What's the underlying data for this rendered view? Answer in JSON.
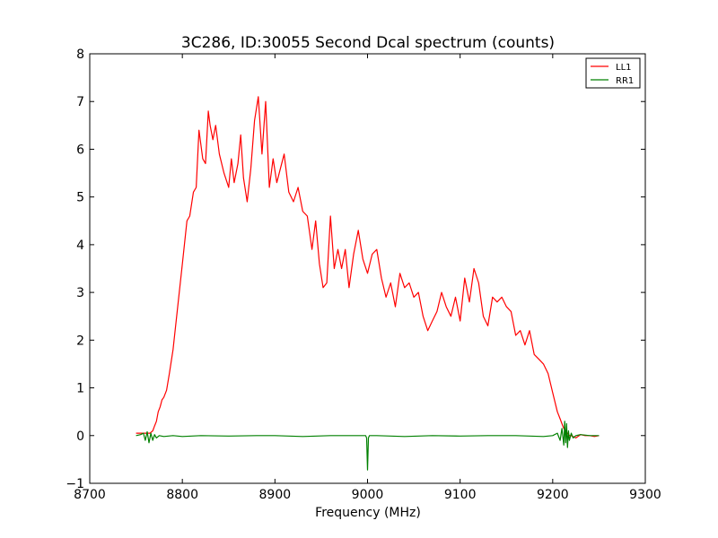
{
  "chart_data": {
    "type": "line",
    "title": "3C286, ID:30055 Second Dcal spectrum (counts)",
    "xlabel": "Frequency (MHz)",
    "ylabel": "",
    "xlim": [
      8700,
      9300
    ],
    "ylim": [
      -1,
      8
    ],
    "xticks": [
      8700,
      8800,
      8900,
      9000,
      9100,
      9200,
      9300
    ],
    "yticks": [
      -1,
      0,
      1,
      2,
      3,
      4,
      5,
      6,
      7,
      8
    ],
    "xtick_labels": [
      "8700",
      "8800",
      "8900",
      "9000",
      "9100",
      "9200",
      "9300"
    ],
    "ytick_labels": [
      "−1",
      "0",
      "1",
      "2",
      "3",
      "4",
      "5",
      "6",
      "7",
      "8"
    ],
    "grid": false,
    "legend_position": "top-right",
    "series": [
      {
        "name": "LL1",
        "color": "#ff0000",
        "x": [
          8750,
          8760,
          8765,
          8768,
          8770,
          8772,
          8774,
          8776,
          8778,
          8780,
          8783,
          8786,
          8790,
          8795,
          8800,
          8805,
          8808,
          8812,
          8815,
          8818,
          8822,
          8825,
          8828,
          8830,
          8833,
          8836,
          8840,
          8845,
          8850,
          8853,
          8856,
          8860,
          8863,
          8866,
          8870,
          8874,
          8878,
          8882,
          8886,
          8890,
          8894,
          8898,
          8902,
          8906,
          8910,
          8915,
          8920,
          8925,
          8930,
          8935,
          8940,
          8944,
          8948,
          8952,
          8956,
          8960,
          8964,
          8968,
          8972,
          8976,
          8980,
          8985,
          8990,
          8995,
          9000,
          9005,
          9010,
          9015,
          9020,
          9025,
          9030,
          9035,
          9040,
          9045,
          9050,
          9055,
          9060,
          9065,
          9070,
          9075,
          9080,
          9085,
          9090,
          9095,
          9100,
          9105,
          9110,
          9115,
          9120,
          9125,
          9130,
          9135,
          9140,
          9145,
          9150,
          9155,
          9160,
          9165,
          9170,
          9175,
          9180,
          9185,
          9190,
          9195,
          9200,
          9205,
          9208,
          9210,
          9212,
          9214,
          9216,
          9218,
          9220,
          9225,
          9230,
          9235,
          9240,
          9245,
          9250
        ],
        "y": [
          0.05,
          0.05,
          0.05,
          0.1,
          0.2,
          0.3,
          0.5,
          0.6,
          0.75,
          0.8,
          0.95,
          1.3,
          1.8,
          2.7,
          3.6,
          4.5,
          4.6,
          5.1,
          5.2,
          6.4,
          5.8,
          5.7,
          6.8,
          6.5,
          6.2,
          6.5,
          5.9,
          5.5,
          5.2,
          5.8,
          5.3,
          5.7,
          6.3,
          5.4,
          4.9,
          5.6,
          6.6,
          7.1,
          5.9,
          7.0,
          5.2,
          5.8,
          5.3,
          5.6,
          5.9,
          5.1,
          4.9,
          5.2,
          4.7,
          4.6,
          3.9,
          4.5,
          3.6,
          3.1,
          3.2,
          4.6,
          3.5,
          3.9,
          3.5,
          3.9,
          3.1,
          3.8,
          4.3,
          3.7,
          3.4,
          3.8,
          3.9,
          3.3,
          2.9,
          3.2,
          2.7,
          3.4,
          3.1,
          3.2,
          2.9,
          3.0,
          2.5,
          2.2,
          2.4,
          2.6,
          3.0,
          2.7,
          2.5,
          2.9,
          2.4,
          3.3,
          2.8,
          3.5,
          3.2,
          2.5,
          2.3,
          2.9,
          2.8,
          2.9,
          2.7,
          2.6,
          2.1,
          2.2,
          1.9,
          2.2,
          1.7,
          1.6,
          1.5,
          1.3,
          0.9,
          0.5,
          0.35,
          0.25,
          0.15,
          0.1,
          0.05,
          0.0,
          0.0,
          -0.05,
          0.02,
          0.0,
          0.0,
          -0.02,
          0.0
        ]
      },
      {
        "name": "RR1",
        "color": "#008000",
        "x": [
          8750,
          8755,
          8758,
          8760,
          8762,
          8764,
          8766,
          8768,
          8770,
          8772,
          8775,
          8780,
          8790,
          8800,
          8820,
          8850,
          8880,
          8900,
          8930,
          8960,
          8990,
          8998,
          8999,
          9000,
          9001,
          9002,
          9010,
          9040,
          9070,
          9100,
          9130,
          9160,
          9190,
          9200,
          9205,
          9208,
          9210,
          9212,
          9213,
          9214,
          9215,
          9216,
          9217,
          9218,
          9220,
          9222,
          9225,
          9230,
          9240,
          9250
        ],
        "y": [
          0.0,
          0.02,
          0.05,
          -0.1,
          0.08,
          -0.15,
          0.05,
          -0.1,
          0.02,
          -0.05,
          0.0,
          -0.02,
          0.0,
          -0.02,
          0.0,
          -0.01,
          0.0,
          0.0,
          -0.02,
          0.0,
          0.0,
          0.0,
          -0.05,
          -0.72,
          -0.05,
          0.0,
          0.0,
          -0.02,
          0.0,
          -0.01,
          0.0,
          0.0,
          -0.02,
          0.0,
          0.05,
          -0.1,
          0.15,
          -0.2,
          0.3,
          -0.15,
          0.25,
          -0.25,
          0.1,
          -0.1,
          0.05,
          -0.05,
          0.0,
          0.02,
          0.0,
          0.0
        ]
      }
    ]
  }
}
